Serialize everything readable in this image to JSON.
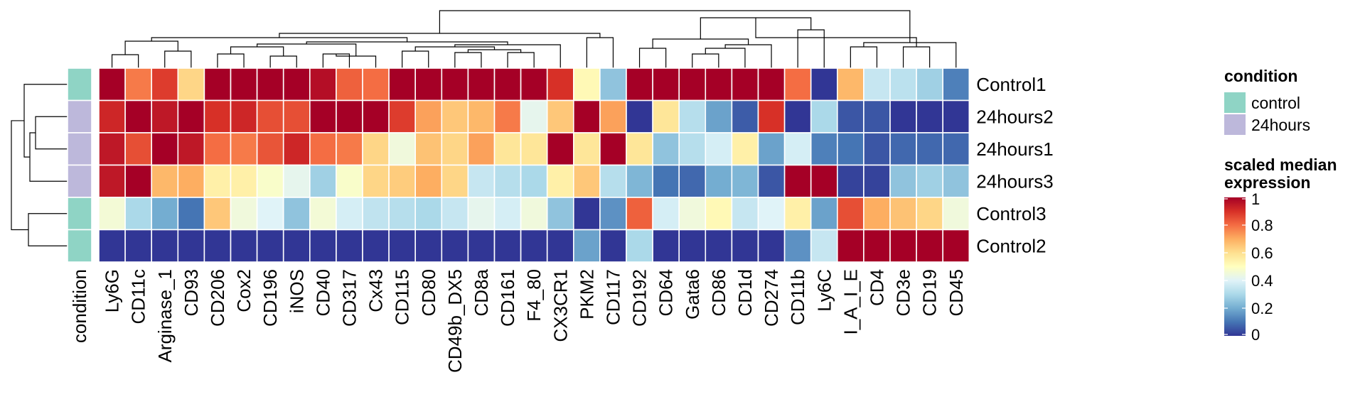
{
  "chart_data": {
    "type": "heatmap",
    "rows": [
      "Control1",
      "24hours2",
      "24hours1",
      "24hours3",
      "Control3",
      "Control2"
    ],
    "row_conditions": [
      "control",
      "24hours",
      "24hours",
      "24hours",
      "control",
      "control"
    ],
    "columns": [
      "Ly6G",
      "CD11c",
      "Arginase_1",
      "CD93",
      "CD206",
      "Cox2",
      "CD196",
      "iNOS",
      "CD40",
      "CD317",
      "Cx43",
      "CD115",
      "CD80",
      "CD49b_DX5",
      "CD8a",
      "CD161",
      "F4_80",
      "CX3CR1",
      "PKM2",
      "CD117",
      "CD192",
      "CD64",
      "Gata6",
      "CD86",
      "CD1d",
      "CD274",
      "CD11b",
      "Ly6C",
      "I_A_I_E",
      "CD4",
      "CD3e",
      "CD19",
      "CD45"
    ],
    "values": [
      [
        1.0,
        0.78,
        0.88,
        0.62,
        1.0,
        1.0,
        1.0,
        1.0,
        0.97,
        0.82,
        0.8,
        1.0,
        1.0,
        1.0,
        1.0,
        1.0,
        1.0,
        0.9,
        0.52,
        0.25,
        1.0,
        1.0,
        1.0,
        1.0,
        1.0,
        1.0,
        0.8,
        0.0,
        0.68,
        0.35,
        0.33,
        0.28,
        0.12
      ],
      [
        0.92,
        1.0,
        0.95,
        1.0,
        0.9,
        0.92,
        0.85,
        0.85,
        1.0,
        1.0,
        1.0,
        0.88,
        0.72,
        0.65,
        0.68,
        0.78,
        0.42,
        0.65,
        1.0,
        0.72,
        0.0,
        0.58,
        0.32,
        0.18,
        0.06,
        0.9,
        0.0,
        0.3,
        0.05,
        0.05,
        0.0,
        0.0,
        0.0
      ],
      [
        0.95,
        0.85,
        1.0,
        0.95,
        0.8,
        0.78,
        0.84,
        0.92,
        0.8,
        0.78,
        0.62,
        0.45,
        0.66,
        0.62,
        0.72,
        0.58,
        0.58,
        1.0,
        0.58,
        1.0,
        0.58,
        0.25,
        0.32,
        0.38,
        0.55,
        0.18,
        0.38,
        0.12,
        0.1,
        0.05,
        0.08,
        0.08,
        0.08
      ],
      [
        0.95,
        1.0,
        0.68,
        0.7,
        0.55,
        0.55,
        0.48,
        0.42,
        0.28,
        0.48,
        0.62,
        0.64,
        0.7,
        0.62,
        0.35,
        0.32,
        0.3,
        0.55,
        0.65,
        0.32,
        0.22,
        0.1,
        0.08,
        0.2,
        0.22,
        0.05,
        1.0,
        1.0,
        0.02,
        0.02,
        0.25,
        0.28,
        0.25
      ],
      [
        0.46,
        0.3,
        0.2,
        0.1,
        0.65,
        0.45,
        0.4,
        0.25,
        0.46,
        0.38,
        0.34,
        0.32,
        0.3,
        0.35,
        0.42,
        0.38,
        0.45,
        0.25,
        0.0,
        0.15,
        0.82,
        0.38,
        0.45,
        0.52,
        0.35,
        0.4,
        0.55,
        0.18,
        0.85,
        0.7,
        0.66,
        0.62,
        0.45
      ],
      [
        0.0,
        0.0,
        0.0,
        0.0,
        0.0,
        0.0,
        0.0,
        0.0,
        0.0,
        0.0,
        0.0,
        0.0,
        0.0,
        0.0,
        0.0,
        0.0,
        0.0,
        0.0,
        0.18,
        0.0,
        0.3,
        0.0,
        0.0,
        0.0,
        0.0,
        0.0,
        0.15,
        0.35,
        1.0,
        1.0,
        1.0,
        1.0,
        1.0
      ]
    ],
    "annotation_label": "condition",
    "condition_colors": {
      "control": "#8FD4C5",
      "24hours": "#BDB8DB"
    },
    "legend_condition": {
      "title": "condition",
      "items": [
        {
          "label": "control",
          "color": "#8FD4C5"
        },
        {
          "label": "24hours",
          "color": "#BDB8DB"
        }
      ]
    },
    "legend_scale": {
      "title_line1": "scaled median",
      "title_line2": "expression",
      "ticks": [
        "1",
        "0.8",
        "0.6",
        "0.4",
        "0.2",
        "0"
      ],
      "tick_values": [
        1,
        0.8,
        0.6,
        0.4,
        0.2,
        0
      ]
    },
    "colormap": [
      "#313695",
      "#4575B4",
      "#74ADD1",
      "#ABD9E9",
      "#E0F3F8",
      "#FFFFBF",
      "#FEE090",
      "#FDAE61",
      "#F46D43",
      "#D73027",
      "#A50026"
    ],
    "vmin": 0,
    "vmax": 1,
    "column_dendrogram": true,
    "row_dendrogram": true
  }
}
